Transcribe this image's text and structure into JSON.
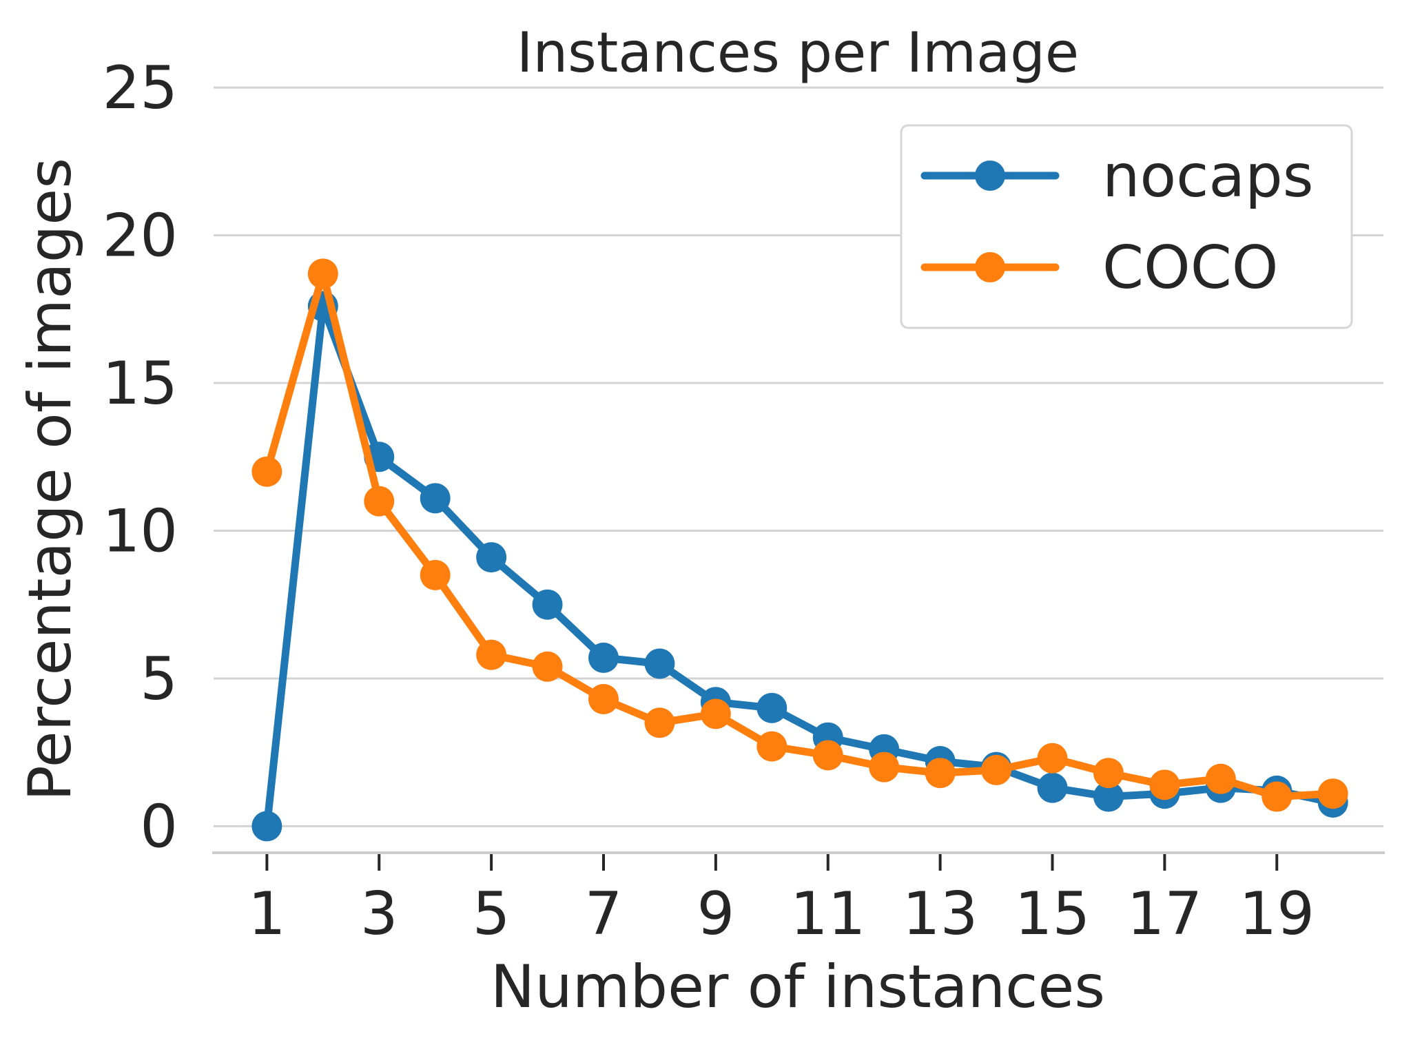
{
  "chart_data": {
    "type": "line",
    "title": "Instances per Image",
    "xlabel": "Number of instances",
    "ylabel": "Percentage of images",
    "x": [
      1,
      2,
      3,
      4,
      5,
      6,
      7,
      8,
      9,
      10,
      11,
      12,
      13,
      14,
      15,
      16,
      17,
      18,
      19,
      20
    ],
    "xticks": [
      1,
      3,
      5,
      7,
      9,
      11,
      13,
      15,
      17,
      19
    ],
    "yticks": [
      0,
      5,
      10,
      15,
      20,
      25
    ],
    "xlim": [
      0.05,
      20.9
    ],
    "ylim": [
      -0.9,
      25.4
    ],
    "grid": true,
    "legend_position": "top-right",
    "series": [
      {
        "name": "nocaps",
        "color": "#1f77b4",
        "values": [
          0,
          17.6,
          12.5,
          11.1,
          9.1,
          7.5,
          5.7,
          5.5,
          4.2,
          4.0,
          3.0,
          2.6,
          2.2,
          2.0,
          1.3,
          1.0,
          1.1,
          1.3,
          1.2,
          0.8
        ]
      },
      {
        "name": "COCO",
        "color": "#ff7f0e",
        "values": [
          12.0,
          18.7,
          11.0,
          8.5,
          5.8,
          5.4,
          4.3,
          3.5,
          3.8,
          2.7,
          2.4,
          2.0,
          1.8,
          1.9,
          2.3,
          1.8,
          1.4,
          1.6,
          1.0,
          1.1
        ]
      }
    ]
  }
}
